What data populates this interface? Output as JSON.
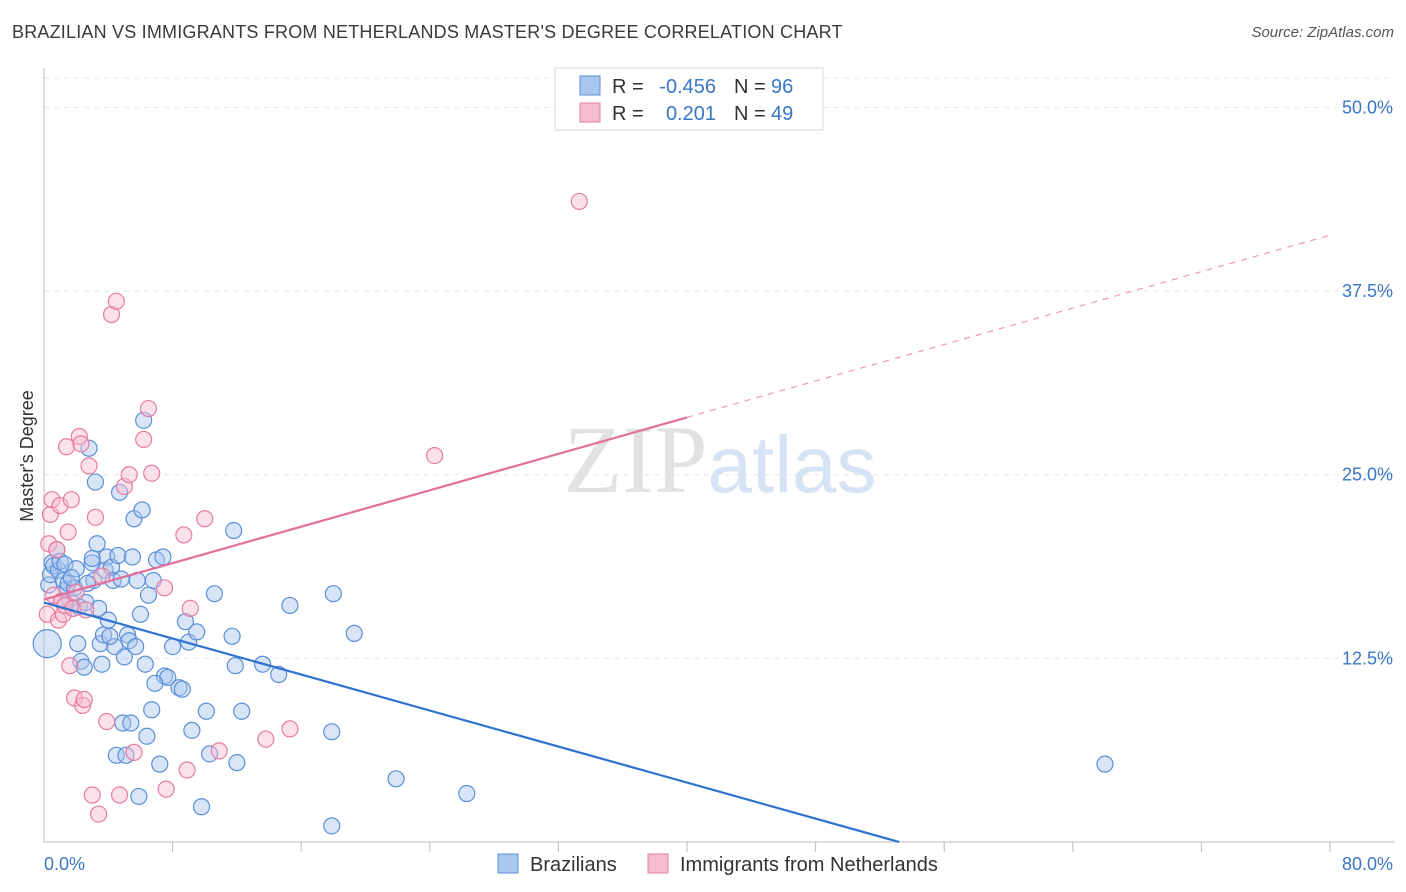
{
  "chart_data": {
    "type": "scatter",
    "title": "BRAZILIAN VS IMMIGRANTS FROM NETHERLANDS MASTER'S DEGREE CORRELATION CHART",
    "source": "Source: ZipAtlas.com",
    "xlabel": "",
    "ylabel": "Master's Degree",
    "xlim": [
      0,
      80
    ],
    "ylim": [
      0,
      52
    ],
    "x_tick_labels": [
      "0.0%",
      "80.0%"
    ],
    "y_ticks": [
      {
        "value": 12.5,
        "label": "12.5%"
      },
      {
        "value": 25.0,
        "label": "25.0%"
      },
      {
        "value": 37.5,
        "label": "37.5%"
      },
      {
        "value": 50.0,
        "label": "50.0%"
      }
    ],
    "grid": true,
    "watermark": "ZIPatlas",
    "legend_position": "top-center",
    "stats": [
      {
        "series": "Brazilians",
        "r_label": "R =",
        "r": "-0.456",
        "n_label": "N =",
        "n": "96"
      },
      {
        "series": "Immigrants from Netherlands",
        "r_label": "R =",
        "r": "0.201",
        "n_label": "N =",
        "n": "49"
      }
    ],
    "series": [
      {
        "name": "Brazilians",
        "color": "#5b8fd8",
        "fill": "#a9c6ee",
        "trend": {
          "x0": 0,
          "y0": 16.3,
          "x1": 53.2,
          "y1": 0,
          "dashed_to": null
        },
        "points": [
          [
            0.2,
            13.5
          ],
          [
            0.3,
            17.5
          ],
          [
            0.4,
            18.2
          ],
          [
            0.5,
            19.0
          ],
          [
            0.6,
            18.8
          ],
          [
            0.8,
            19.9
          ],
          [
            0.9,
            18.5
          ],
          [
            1.0,
            19.1
          ],
          [
            1.2,
            17.8
          ],
          [
            1.3,
            18.9
          ],
          [
            1.4,
            17.2
          ],
          [
            1.5,
            17.6
          ],
          [
            1.6,
            16.5
          ],
          [
            1.8,
            15.9
          ],
          [
            1.9,
            17.3
          ],
          [
            2.0,
            18.6
          ],
          [
            2.1,
            13.5
          ],
          [
            2.2,
            16.0
          ],
          [
            2.3,
            12.3
          ],
          [
            2.5,
            11.9
          ],
          [
            2.6,
            16.3
          ],
          [
            2.8,
            26.8
          ],
          [
            3.0,
            19.0
          ],
          [
            3.1,
            17.8
          ],
          [
            3.2,
            24.5
          ],
          [
            3.3,
            20.3
          ],
          [
            3.4,
            15.9
          ],
          [
            3.5,
            13.5
          ],
          [
            3.6,
            12.1
          ],
          [
            3.7,
            14.1
          ],
          [
            3.8,
            18.5
          ],
          [
            3.9,
            19.4
          ],
          [
            4.0,
            15.1
          ],
          [
            4.2,
            18.7
          ],
          [
            4.3,
            17.8
          ],
          [
            4.4,
            13.3
          ],
          [
            4.5,
            5.9
          ],
          [
            4.6,
            19.5
          ],
          [
            4.7,
            23.8
          ],
          [
            4.8,
            17.9
          ],
          [
            4.9,
            8.1
          ],
          [
            5.0,
            12.6
          ],
          [
            5.1,
            5.9
          ],
          [
            5.2,
            14.1
          ],
          [
            5.3,
            13.7
          ],
          [
            5.4,
            8.1
          ],
          [
            5.5,
            19.4
          ],
          [
            5.6,
            22.0
          ],
          [
            5.7,
            13.3
          ],
          [
            5.8,
            17.8
          ],
          [
            5.9,
            3.1
          ],
          [
            6.0,
            15.5
          ],
          [
            6.1,
            22.6
          ],
          [
            6.2,
            28.7
          ],
          [
            6.3,
            12.1
          ],
          [
            6.4,
            7.2
          ],
          [
            6.5,
            16.8
          ],
          [
            6.7,
            9.0
          ],
          [
            6.8,
            17.8
          ],
          [
            7.0,
            19.2
          ],
          [
            7.2,
            5.3
          ],
          [
            7.4,
            19.4
          ],
          [
            7.5,
            11.3
          ],
          [
            7.7,
            11.2
          ],
          [
            8.0,
            13.3
          ],
          [
            8.4,
            10.5
          ],
          [
            8.6,
            10.4
          ],
          [
            8.8,
            15.0
          ],
          [
            9.0,
            13.6
          ],
          [
            9.2,
            7.6
          ],
          [
            9.5,
            14.3
          ],
          [
            9.8,
            2.4
          ],
          [
            10.1,
            8.9
          ],
          [
            10.3,
            6.0
          ],
          [
            10.6,
            16.9
          ],
          [
            11.7,
            14.0
          ],
          [
            11.8,
            21.2
          ],
          [
            11.9,
            12.0
          ],
          [
            12.0,
            5.4
          ],
          [
            12.3,
            8.9
          ],
          [
            13.6,
            12.1
          ],
          [
            14.6,
            11.4
          ],
          [
            15.3,
            16.1
          ],
          [
            17.9,
            1.1
          ],
          [
            17.9,
            7.5
          ],
          [
            18.0,
            16.9
          ],
          [
            19.3,
            14.2
          ],
          [
            21.9,
            4.3
          ],
          [
            26.3,
            3.3
          ],
          [
            66.0,
            5.3
          ],
          [
            2.7,
            17.6
          ],
          [
            3.0,
            19.3
          ],
          [
            1.7,
            18.0
          ],
          [
            1.1,
            16.4
          ],
          [
            4.1,
            14.0
          ],
          [
            6.9,
            10.8
          ]
        ]
      },
      {
        "name": "Immigrants from Netherlands",
        "color": "#e87ba0",
        "fill": "#f6bcd0",
        "trend": {
          "x0": 0,
          "y0": 16.5,
          "x1": 40.0,
          "y1": 28.9,
          "dashed_to": {
            "x": 80.0,
            "y": 41.3
          }
        },
        "points": [
          [
            0.2,
            15.5
          ],
          [
            0.3,
            20.3
          ],
          [
            0.4,
            22.3
          ],
          [
            0.5,
            23.3
          ],
          [
            0.6,
            16.8
          ],
          [
            0.8,
            19.9
          ],
          [
            0.9,
            15.1
          ],
          [
            1.0,
            22.9
          ],
          [
            1.1,
            16.4
          ],
          [
            1.2,
            15.5
          ],
          [
            1.3,
            16.1
          ],
          [
            1.4,
            26.9
          ],
          [
            1.5,
            21.1
          ],
          [
            1.6,
            12.0
          ],
          [
            1.7,
            23.3
          ],
          [
            1.8,
            15.9
          ],
          [
            1.9,
            9.8
          ],
          [
            2.0,
            17.0
          ],
          [
            2.2,
            27.6
          ],
          [
            2.3,
            27.1
          ],
          [
            2.4,
            9.3
          ],
          [
            2.5,
            9.7
          ],
          [
            2.6,
            15.8
          ],
          [
            2.8,
            25.6
          ],
          [
            3.0,
            3.2
          ],
          [
            3.2,
            22.1
          ],
          [
            3.4,
            1.9
          ],
          [
            3.6,
            18.1
          ],
          [
            3.9,
            8.2
          ],
          [
            4.2,
            35.9
          ],
          [
            4.5,
            36.8
          ],
          [
            4.7,
            3.2
          ],
          [
            5.0,
            24.2
          ],
          [
            5.3,
            25.0
          ],
          [
            5.6,
            6.1
          ],
          [
            6.2,
            27.4
          ],
          [
            6.5,
            29.5
          ],
          [
            6.7,
            25.1
          ],
          [
            7.5,
            17.3
          ],
          [
            7.6,
            3.6
          ],
          [
            8.7,
            20.9
          ],
          [
            8.9,
            4.9
          ],
          [
            9.1,
            15.9
          ],
          [
            10.0,
            22.0
          ],
          [
            10.9,
            6.2
          ],
          [
            13.8,
            7.0
          ],
          [
            15.3,
            7.7
          ],
          [
            24.3,
            26.3
          ],
          [
            33.3,
            43.6
          ]
        ]
      }
    ]
  }
}
